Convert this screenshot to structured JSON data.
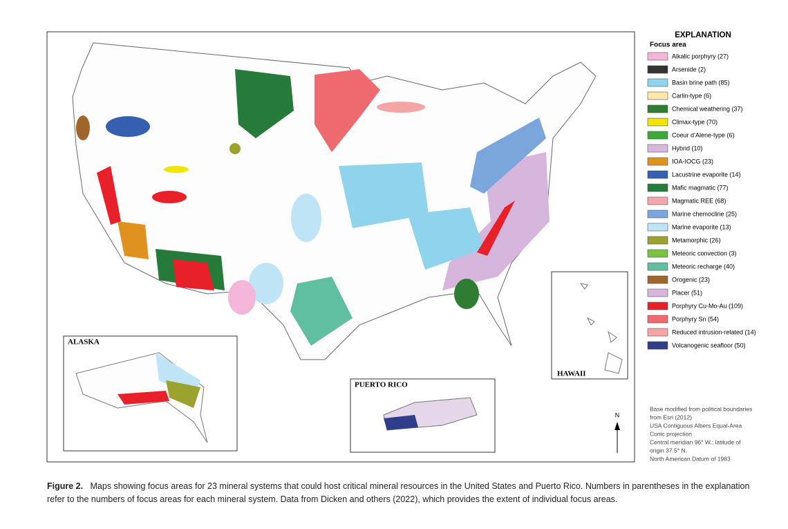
{
  "legend": {
    "title": "EXPLANATION",
    "subtitle": "Focus area",
    "items": [
      {
        "label": "Alkalic porphyry (27)",
        "color": "#f4b6d8"
      },
      {
        "label": "Arsenide (2)",
        "color": "#333333"
      },
      {
        "label": "Basin brine path (85)",
        "color": "#8fd3ec"
      },
      {
        "label": "Carlin-type (6)",
        "color": "#fde8a8"
      },
      {
        "label": "Chemical weathering (37)",
        "color": "#2e7d32"
      },
      {
        "label": "Climax-type (70)",
        "color": "#f2e500"
      },
      {
        "label": "Coeur d’Alene-type (6)",
        "color": "#3aaa35"
      },
      {
        "label": "Hybrid (10)",
        "color": "#d8b8dc"
      },
      {
        "label": "IOA-IOCG (23)",
        "color": "#e0921e"
      },
      {
        "label": "Lacustrine evaporite (14)",
        "color": "#3560b0"
      },
      {
        "label": "Mafic magmatic (77)",
        "color": "#267a3a"
      },
      {
        "label": "Magmatic REE (68)",
        "color": "#f3a8ae"
      },
      {
        "label": "Marine chemocline (25)",
        "color": "#7aa6dc"
      },
      {
        "label": "Marine evaporite (13)",
        "color": "#bfe4f6"
      },
      {
        "label": "Metamorphic (26)",
        "color": "#9ca22e"
      },
      {
        "label": "Meteoric convection (3)",
        "color": "#7cc242"
      },
      {
        "label": "Meteoric recharge (40)",
        "color": "#5fbfa0"
      },
      {
        "label": "Orogenic (23)",
        "color": "#a0652a"
      },
      {
        "label": "Placer (51)",
        "color": "#d6b6dc"
      },
      {
        "label": "Porphyry Cu-Mo-Au (109)",
        "color": "#e8202a"
      },
      {
        "label": "Porphyry Sn (54)",
        "color": "#ee6a6e"
      },
      {
        "label": "Reduced intrusion-related (14)",
        "color": "#f4a6a6"
      },
      {
        "label": "Volcanogenic seafloor (50)",
        "color": "#2f3d8a"
      }
    ]
  },
  "insets": {
    "alaska": "ALASKA",
    "puerto_rico": "PUERTO RICO",
    "hawaii": "HAWAII"
  },
  "north_arrow": "N",
  "base_notes": [
    "Base modified from political boundaries",
    "from Esri (2012)",
    "USA Contiguous Albers Equal-Area",
    "Conic projection",
    "Central meridian 96° W.; latitude of",
    "origin 37.5° N.",
    "North American Datum of 1983"
  ],
  "caption": {
    "label": "Figure 2.",
    "text": "Maps showing focus areas for 23 mineral systems that could host critical mineral resources in the United States and Puerto Rico. Numbers in parentheses in the explanation refer to the numbers of focus areas for each mineral system. Data from Dicken and others (2022), which provides the extent of individual focus areas."
  }
}
